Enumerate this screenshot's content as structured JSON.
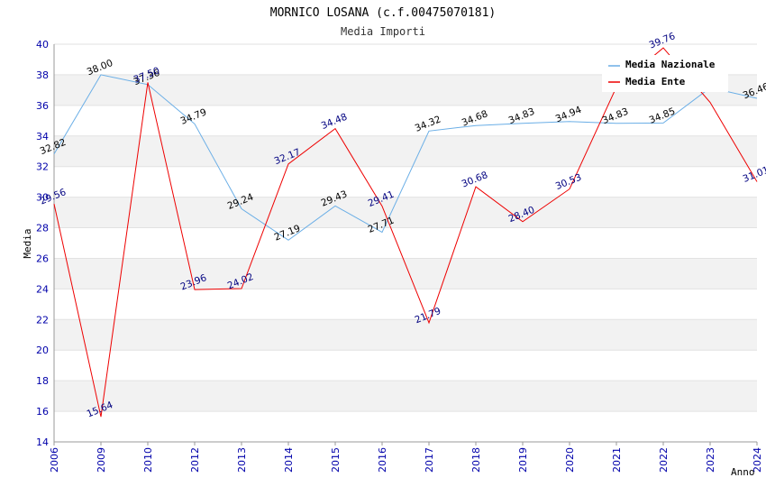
{
  "chart_data": {
    "type": "line",
    "title": "MORNICO LOSANA (c.f.00475070181)",
    "subtitle": "Media Importi",
    "xlabel": "Anno",
    "ylabel": "Media",
    "ylim": [
      14,
      40
    ],
    "ytick_step": 2,
    "grid": "horizontal bands",
    "legend_position": "top-right",
    "categories": [
      "2006",
      "2009",
      "2010",
      "2012",
      "2013",
      "2014",
      "2015",
      "2016",
      "2017",
      "2018",
      "2019",
      "2020",
      "2021",
      "2022",
      "2023",
      "2024"
    ],
    "series": [
      {
        "name": "Media Nazionale",
        "color": "#6aaee6",
        "label_color": "#000000",
        "values": [
          32.82,
          38.0,
          37.36,
          34.79,
          29.24,
          27.19,
          29.43,
          27.71,
          34.32,
          34.68,
          34.83,
          34.94,
          34.83,
          34.85,
          37.15,
          36.46
        ]
      },
      {
        "name": "Media Ente",
        "color": "#ee0000",
        "label_color": "#000080",
        "values": [
          29.56,
          15.64,
          37.5,
          23.96,
          24.02,
          32.17,
          34.48,
          29.41,
          21.79,
          30.68,
          28.4,
          30.53,
          37.2,
          39.76,
          36.2,
          31.01
        ]
      }
    ],
    "visible_labels": {
      "Media Nazionale": [
        "32.82",
        "38.00",
        "37.36",
        "34.79",
        "29.24",
        "27.19",
        "29.43",
        "27.71",
        "34.32",
        "34.68",
        "34.83",
        "34.94",
        "34.83",
        "34.85",
        "",
        "36.46"
      ],
      "Media Ente": [
        "29.56",
        "15.64",
        "37.50",
        "23.96",
        "24.02",
        "32.17",
        "34.48",
        "29.41",
        "21.79",
        "30.68",
        "28.40",
        "30.53",
        "",
        "39.76",
        "",
        "31.01"
      ]
    }
  }
}
